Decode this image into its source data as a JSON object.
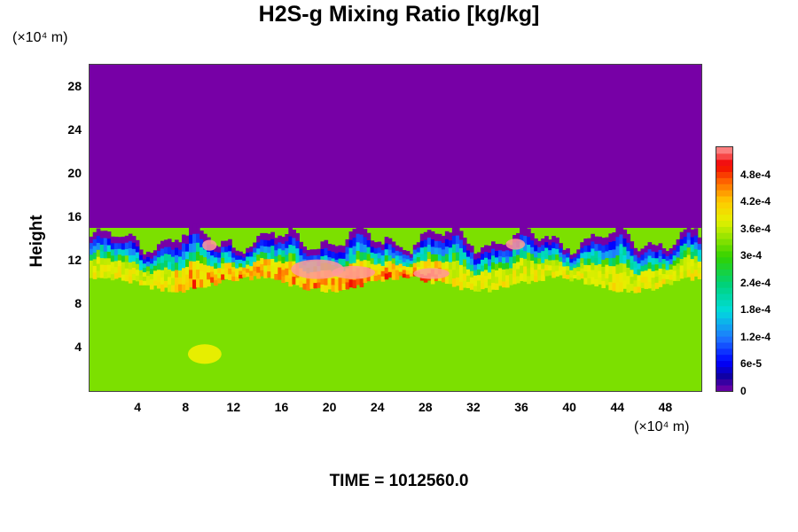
{
  "chart_data": {
    "type": "heatmap",
    "title": "H2S-g Mixing Ratio [kg/kg]",
    "ylabel": "Height",
    "y_units_label": "(×10⁴ m)",
    "x_units_label": "(×10⁴ m)",
    "xlim": [
      0,
      51
    ],
    "ylim": [
      0,
      30
    ],
    "x_ticks": [
      "4",
      "8",
      "12",
      "16",
      "20",
      "24",
      "28",
      "32",
      "36",
      "40",
      "44",
      "48"
    ],
    "y_ticks": [
      "4",
      "8",
      "12",
      "16",
      "20",
      "24",
      "28"
    ],
    "colorbar": {
      "labels": [
        "0",
        "6e-5",
        "1.2e-4",
        "1.8e-4",
        "2.4e-4",
        "3e-4",
        "3.6e-4",
        "4.2e-4",
        "4.8e-4"
      ],
      "range": [
        0,
        0.00054
      ]
    },
    "regions": [
      {
        "description": "upper layer",
        "value": 0,
        "y_range": [
          14.5,
          30
        ]
      },
      {
        "description": "lower layer",
        "value": 0.00033,
        "y_range": [
          0,
          10
        ]
      },
      {
        "description": "transition band",
        "value_range": [
          6e-05,
          0.0005
        ],
        "y_range": [
          9,
          15
        ]
      }
    ],
    "colors": {
      "upper": "#7700a6",
      "lower": "#d2f000",
      "max": "#ff9999"
    },
    "footer": "TIME = 1012560.0"
  }
}
